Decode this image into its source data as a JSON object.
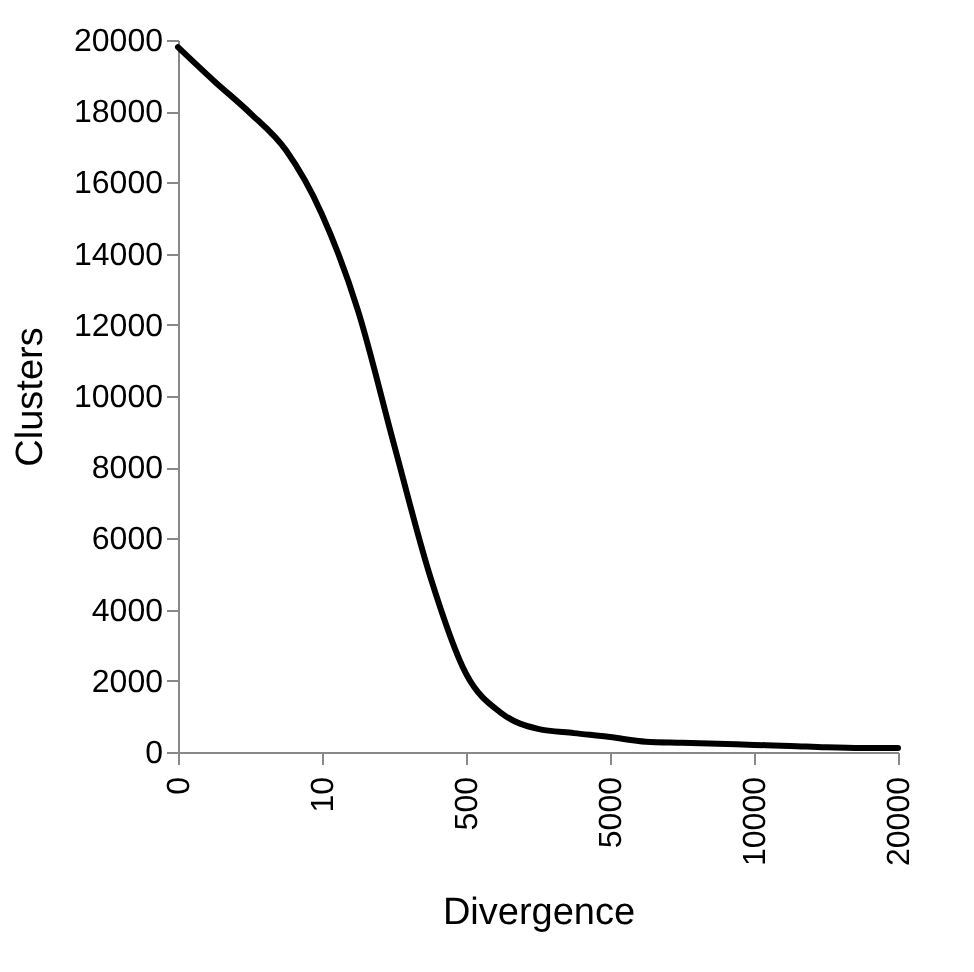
{
  "chart_data": {
    "type": "line",
    "xlabel": "Divergence",
    "ylabel": "Clusters",
    "categories": [
      "0",
      null,
      null,
      null,
      "10",
      null,
      null,
      null,
      "500",
      null,
      null,
      null,
      "5000",
      null,
      null,
      null,
      "10000",
      null,
      null,
      null,
      "20000"
    ],
    "series": [
      {
        "color": "#000000",
        "values": [
          19800,
          18850,
          17950,
          16900,
          15100,
          12400,
          8640,
          4950,
          2200,
          1080,
          650,
          530,
          420,
          290,
          260,
          230,
          200,
          170,
          130,
          110,
          110
        ]
      }
    ],
    "ylim": [
      0,
      20000
    ],
    "yticks": [
      0,
      2000,
      4000,
      6000,
      8000,
      10000,
      12000,
      14000,
      16000,
      18000,
      20000
    ],
    "grid": false,
    "marker": "none",
    "line_style": "solid"
  }
}
